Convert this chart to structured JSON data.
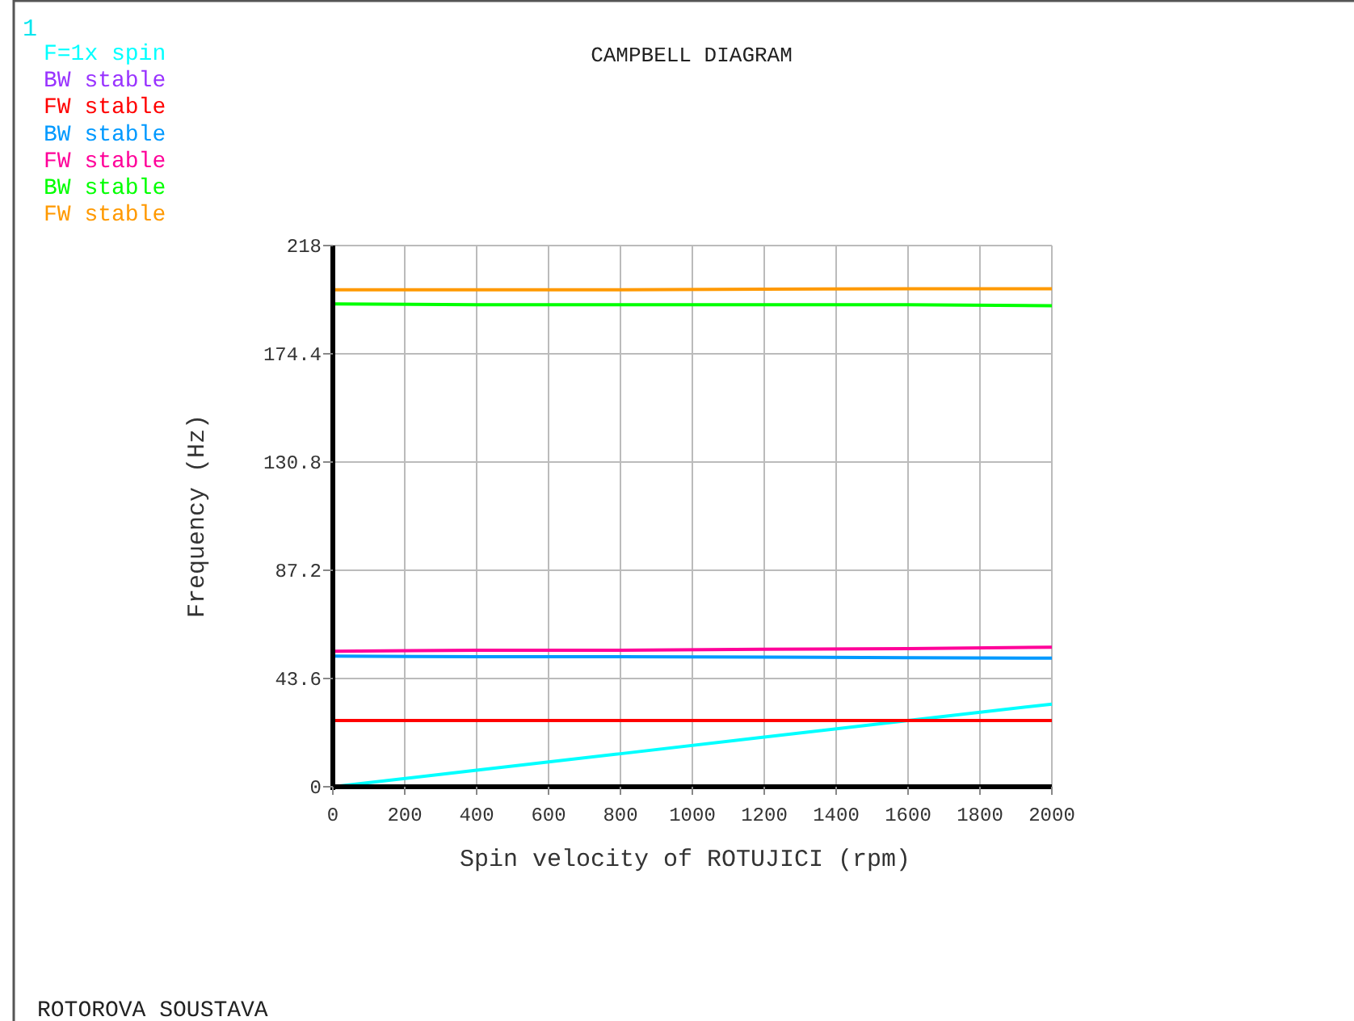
{
  "chart_data": {
    "type": "line",
    "title": "CAMPBELL DIAGRAM",
    "xlabel": "Spin velocity of ROTUJICI (rpm)",
    "ylabel": "Frequency (Hz)",
    "annotations": [
      "1",
      "ROTOROVA SOUSTAVA"
    ],
    "x": [
      0,
      400,
      800,
      1200,
      1600,
      2000
    ],
    "xlim": [
      0,
      2000
    ],
    "xticks": [
      0,
      200,
      400,
      600,
      800,
      1000,
      1200,
      1400,
      1600,
      1800,
      2000
    ],
    "ylim": [
      0,
      218
    ],
    "yticks": [
      0,
      43.6,
      87.2,
      130.8,
      174.4,
      218
    ],
    "grid": true,
    "legend": "top left",
    "marker": "none",
    "line_style": "solid",
    "series": [
      {
        "name": "F=1x spin",
        "color": "#00ffff",
        "values": [
          0,
          6.7,
          13.3,
          20,
          26.7,
          33.3
        ]
      },
      {
        "name": "BW stable",
        "color": "#9933ff",
        "values": [
          null,
          null,
          null,
          null,
          null,
          null
        ]
      },
      {
        "name": "FW stable",
        "color": "#ff0000",
        "values": [
          26.7,
          26.7,
          26.7,
          26.7,
          26.7,
          26.7
        ]
      },
      {
        "name": "BW stable",
        "color": "#0099ff",
        "values": [
          52.6,
          52.4,
          52.4,
          52.2,
          52,
          51.8
        ]
      },
      {
        "name": "FW stable",
        "color": "#ff0099",
        "values": [
          54.6,
          55,
          55,
          55.4,
          55.6,
          56.2
        ]
      },
      {
        "name": "BW stable",
        "color": "#00ff00",
        "values": [
          194.5,
          194.2,
          194.2,
          194.2,
          194.2,
          193.8
        ]
      },
      {
        "name": "FW stable",
        "color": "#ff9900",
        "values": [
          200.2,
          200.2,
          200.2,
          200.4,
          200.6,
          200.6
        ]
      }
    ]
  }
}
